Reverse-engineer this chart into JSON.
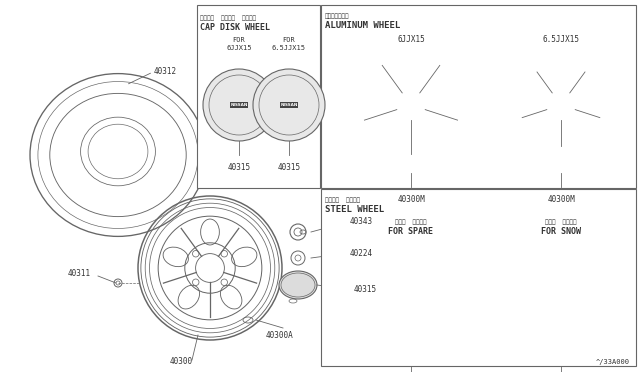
{
  "line_color": "#666666",
  "dark_color": "#333333",
  "watermark": "^/33A000",
  "cap_disk": {
    "jp": "ディスク  ホイール  キャップ",
    "en": "CAP DISK WHEEL",
    "col1_label": "FOR\n6JJX15",
    "col2_label": "FOR\n6.5JJX15",
    "part": "40315"
  },
  "aluminum": {
    "jp": "アルミホイール",
    "en": "ALUMINUM WHEEL",
    "col1_label": "6JJX15",
    "col2_label": "6.5JJX15",
    "part": "40300M"
  },
  "steel": {
    "jp": "スチール  ホイール",
    "en": "STEEL WHEEL",
    "col1_jp": "スペア  タイヤ用",
    "col1_en": "FOR SPARE",
    "col2_jp": "スノー  タイヤ用",
    "col2_en": "FOR SNOW",
    "part": "40300"
  }
}
